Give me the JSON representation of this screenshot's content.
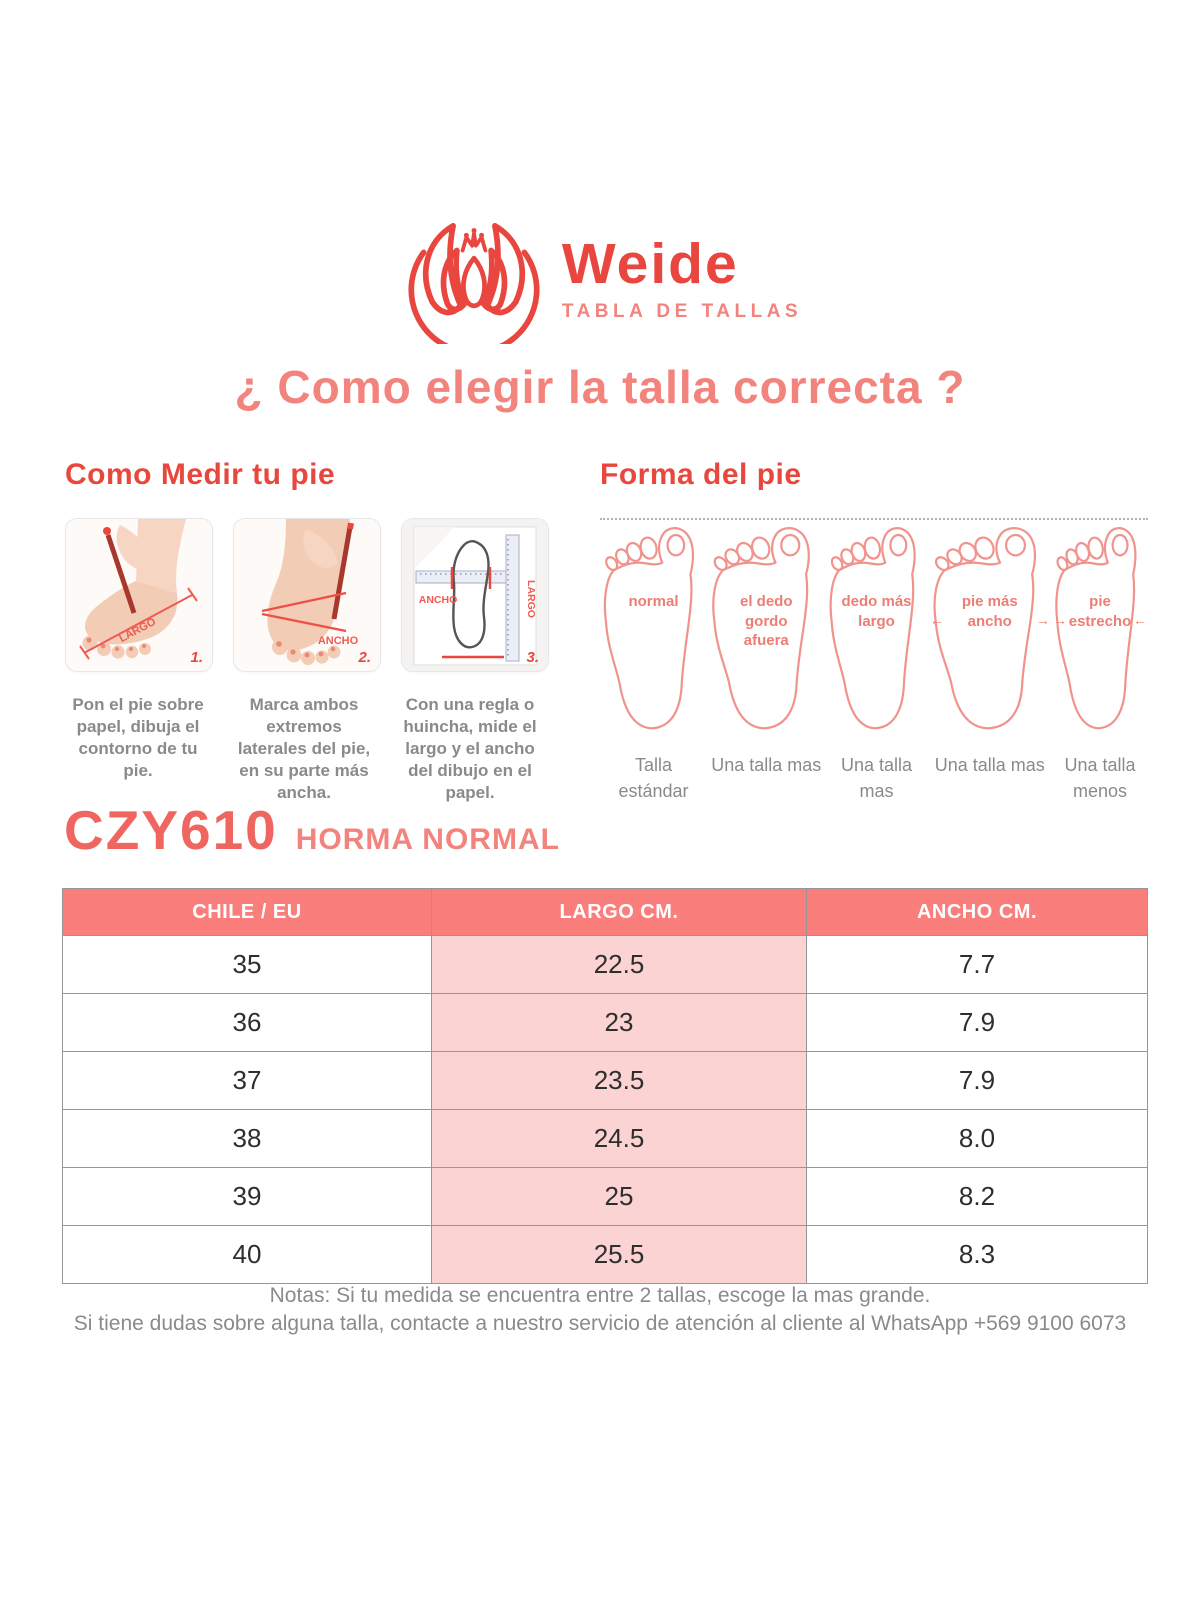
{
  "brand": {
    "name": "Weide",
    "tagline": "TABLA DE TALLAS"
  },
  "title": "¿ Como elegir la talla correcta ?",
  "measure_section": {
    "heading": "Como Medir tu pie",
    "steps": [
      {
        "num": "1.",
        "labels": [
          "LARGO"
        ],
        "caption": "Pon el pie sobre papel, dibuja el contorno de tu pie."
      },
      {
        "num": "2.",
        "labels": [
          "ANCHO"
        ],
        "caption": "Marca ambos extremos laterales del pie, en su parte más ancha."
      },
      {
        "num": "3.",
        "labels": [
          "ANCHO",
          "LARGO"
        ],
        "caption": "Con una regla o huincha, mide el largo y el ancho del dibujo en el papel."
      }
    ]
  },
  "shape_section": {
    "heading": "Forma del pie",
    "feet": [
      {
        "label": "normal",
        "arrows": "none",
        "caption": "Talla estándar"
      },
      {
        "label": "el dedo gordo afuera",
        "arrows": "none",
        "caption": "Una talla mas"
      },
      {
        "label": "dedo más largo",
        "arrows": "none",
        "caption": "Una talla mas"
      },
      {
        "label": "pie más ancho",
        "arrows": "out",
        "caption": "Una talla mas"
      },
      {
        "label": "pie estrecho",
        "arrows": "in",
        "caption": "Una talla menos"
      }
    ]
  },
  "product": {
    "code": "CZY610",
    "subtitle": "HORMA NORMAL"
  },
  "size_table": {
    "headers": [
      "CHILE / EU",
      "LARGO CM.",
      "ANCHO CM."
    ],
    "rows": [
      [
        "35",
        "22.5",
        "7.7"
      ],
      [
        "36",
        "23",
        "7.9"
      ],
      [
        "37",
        "23.5",
        "7.9"
      ],
      [
        "38",
        "24.5",
        "8.0"
      ],
      [
        "39",
        "25",
        "8.2"
      ],
      [
        "40",
        "25.5",
        "8.3"
      ]
    ]
  },
  "notes": [
    "Notas: Si tu medida se encuentra entre 2 tallas, escoge la mas grande.",
    "Si tiene dudas sobre alguna talla, contacte a nuestro servicio de atención al cliente al WhatsApp +569 9100 6073"
  ],
  "colors": {
    "logo_red": "#e8463f",
    "heading_red": "#e8473d",
    "title_salmon": "#f2837d",
    "table_header_bg": "#f97e7c",
    "highlight_pink": "#fbd3d3",
    "foot_outline": "#f0938c",
    "gray_text": "#8a8a8a"
  }
}
